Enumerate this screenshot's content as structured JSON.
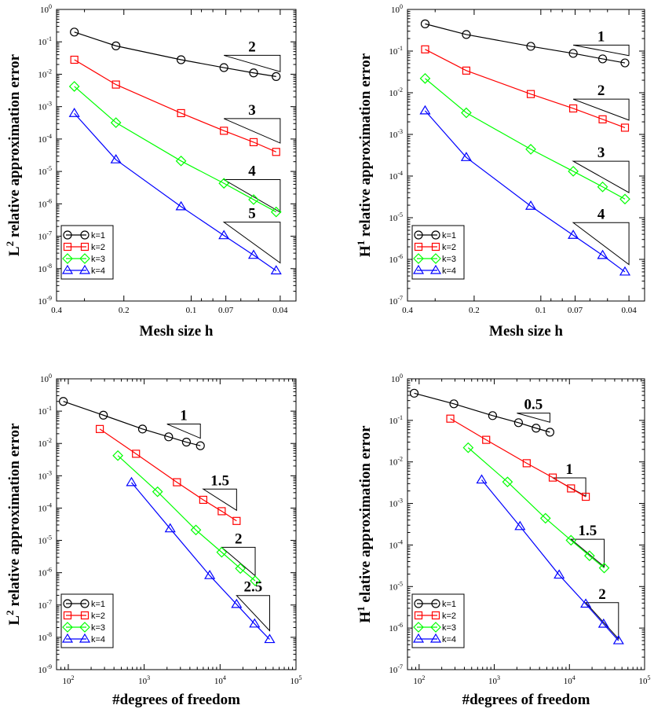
{
  "series_colors": {
    "k=1": "#000000",
    "k=2": "#ff0000",
    "k=3": "#00ff00",
    "k=4": "#0000ff"
  },
  "series_markers": {
    "k=1": "circle",
    "k=2": "square",
    "k=3": "diamond",
    "k=4": "triangle"
  },
  "chart_data": [
    {
      "type": "line",
      "xscale": "log",
      "yscale": "log",
      "x_reversed": true,
      "xlabel": "Mesh size h",
      "ylabel": "L² relative approximation error",
      "ylabel_main": "L",
      "ylabel_sup": "2",
      "ylabel_rest": " relative approximation error",
      "xlim": [
        0.4,
        0.034
      ],
      "ylim": [
        1e-09,
        1
      ],
      "xticks": [
        0.4,
        0.2,
        0.1,
        0.07,
        0.04
      ],
      "xtick_labels": [
        "0.4",
        "0.2",
        "0.1",
        "0.07",
        "0.04"
      ],
      "yticks_exp": [
        0,
        -1,
        -2,
        -3,
        -4,
        -5,
        -6,
        -7,
        -8,
        -9
      ],
      "legend": "bottom-left",
      "series": [
        {
          "name": "k=1",
          "x": [
            0.333,
            0.217,
            0.111,
            0.0714,
            0.0526,
            0.0417
          ],
          "y": [
            0.2,
            0.075,
            0.028,
            0.016,
            0.011,
            0.0085
          ]
        },
        {
          "name": "k=2",
          "x": [
            0.333,
            0.217,
            0.111,
            0.0714,
            0.0526,
            0.0417
          ],
          "y": [
            0.028,
            0.0048,
            0.00063,
            0.00018,
            8e-05,
            4e-05
          ]
        },
        {
          "name": "k=3",
          "x": [
            0.333,
            0.217,
            0.111,
            0.0714,
            0.0526,
            0.0417
          ],
          "y": [
            0.0042,
            0.00032,
            2.1e-05,
            4.3e-06,
            1.35e-06,
            5.6e-07
          ]
        },
        {
          "name": "k=4",
          "x": [
            0.333,
            0.217,
            0.111,
            0.0714,
            0.0526,
            0.0417
          ],
          "y": [
            0.00062,
            2.3e-05,
            8.2e-07,
            1.05e-07,
            2.6e-08,
            8.6e-09
          ]
        }
      ],
      "slope_triangles": [
        {
          "label": "2",
          "x": [
            0.0714,
            0.04
          ],
          "y_bottom": 0.012,
          "slope": 2
        },
        {
          "label": "3",
          "x": [
            0.0714,
            0.04
          ],
          "y_bottom": 7.5e-05,
          "slope": 3
        },
        {
          "label": "4",
          "x": [
            0.0714,
            0.04
          ],
          "y_bottom": 5.5e-07,
          "slope": 4
        },
        {
          "label": "5",
          "x": [
            0.0714,
            0.04
          ],
          "y_bottom": 1.5e-08,
          "slope": 5
        }
      ]
    },
    {
      "type": "line",
      "xscale": "log",
      "yscale": "log",
      "x_reversed": true,
      "xlabel": "Mesh size h",
      "ylabel": "H¹ relative approximation error",
      "ylabel_main": "H",
      "ylabel_sup": "1",
      "ylabel_rest": " relative approximation error",
      "xlim": [
        0.4,
        0.034
      ],
      "ylim": [
        1e-07,
        1
      ],
      "xticks": [
        0.4,
        0.2,
        0.1,
        0.07,
        0.04
      ],
      "xtick_labels": [
        "0.4",
        "0.2",
        "0.1",
        "0.07",
        "0.04"
      ],
      "yticks_exp": [
        0,
        -1,
        -2,
        -3,
        -4,
        -5,
        -6,
        -7
      ],
      "legend": "bottom-left",
      "series": [
        {
          "name": "k=1",
          "x": [
            0.333,
            0.217,
            0.111,
            0.0714,
            0.0526,
            0.0417
          ],
          "y": [
            0.45,
            0.25,
            0.13,
            0.088,
            0.065,
            0.052
          ]
        },
        {
          "name": "k=2",
          "x": [
            0.333,
            0.217,
            0.111,
            0.0714,
            0.0526,
            0.0417
          ],
          "y": [
            0.11,
            0.034,
            0.0093,
            0.0042,
            0.0023,
            0.00145
          ]
        },
        {
          "name": "k=3",
          "x": [
            0.333,
            0.217,
            0.111,
            0.0714,
            0.0526,
            0.0417
          ],
          "y": [
            0.022,
            0.0033,
            0.00044,
            0.00013,
            5.5e-05,
            2.8e-05
          ]
        },
        {
          "name": "k=4",
          "x": [
            0.333,
            0.217,
            0.111,
            0.0714,
            0.0526,
            0.0417
          ],
          "y": [
            0.0037,
            0.00028,
            1.9e-05,
            3.8e-06,
            1.25e-06,
            5e-07
          ]
        }
      ],
      "slope_triangles": [
        {
          "label": "1",
          "x": [
            0.0714,
            0.04
          ],
          "y_bottom": 0.078,
          "slope": 1
        },
        {
          "label": "2",
          "x": [
            0.0714,
            0.04
          ],
          "y_bottom": 0.0022,
          "slope": 2
        },
        {
          "label": "3",
          "x": [
            0.0714,
            0.04
          ],
          "y_bottom": 4e-05,
          "slope": 3
        },
        {
          "label": "4",
          "x": [
            0.0714,
            0.04
          ],
          "y_bottom": 7.5e-07,
          "slope": 4
        }
      ]
    },
    {
      "type": "line",
      "xscale": "log",
      "yscale": "log",
      "x_reversed": false,
      "xlabel": "#degrees of freedom",
      "ylabel": "L² relative approximation error",
      "ylabel_main": "L",
      "ylabel_sup": "2",
      "ylabel_rest": " relative approximation error",
      "xlim": [
        70,
        100000
      ],
      "ylim": [
        1e-09,
        1
      ],
      "xticks": [
        100,
        1000,
        10000,
        100000
      ],
      "xtick_exp": [
        2,
        3,
        4,
        5
      ],
      "yticks_exp": [
        0,
        -1,
        -2,
        -3,
        -4,
        -5,
        -6,
        -7,
        -8,
        -9
      ],
      "legend": "bottom-left",
      "series": [
        {
          "name": "k=1",
          "x": [
            86,
            290,
            950,
            2100,
            3600,
            5500
          ],
          "y": [
            0.2,
            0.075,
            0.028,
            0.016,
            0.011,
            0.0085
          ]
        },
        {
          "name": "k=2",
          "x": [
            260,
            780,
            2700,
            6000,
            10500,
            16500
          ],
          "y": [
            0.028,
            0.0048,
            0.00063,
            0.00018,
            8e-05,
            4e-05
          ]
        },
        {
          "name": "k=3",
          "x": [
            450,
            1500,
            4800,
            10500,
            18500,
            29000
          ],
          "y": [
            0.0042,
            0.00032,
            2.1e-05,
            4.3e-06,
            1.35e-06,
            5.6e-07
          ]
        },
        {
          "name": "k=4",
          "x": [
            680,
            2200,
            7300,
            16500,
            28500,
            45000
          ],
          "y": [
            0.00062,
            2.3e-05,
            8.2e-07,
            1.05e-07,
            2.6e-08,
            8.6e-09
          ]
        }
      ],
      "slope_triangles": [
        {
          "label": "1",
          "x": [
            2000,
            5500
          ],
          "y_bottom": 0.0145,
          "slope": 1
        },
        {
          "label": "1.5",
          "x": [
            6000,
            16500
          ],
          "y_bottom": 8.5e-05,
          "slope": 1.5
        },
        {
          "label": "2",
          "x": [
            10500,
            29000
          ],
          "y_bottom": 8e-07,
          "slope": 2
        },
        {
          "label": "2.5",
          "x": [
            16500,
            45000
          ],
          "y_bottom": 1.6e-08,
          "slope": 2.5
        }
      ]
    },
    {
      "type": "line",
      "xscale": "log",
      "yscale": "log",
      "x_reversed": false,
      "xlabel": "#degrees of freedom",
      "ylabel": "H¹ elative approximation error",
      "ylabel_main": "H",
      "ylabel_sup": "1",
      "ylabel_rest": " elative approximation error",
      "xlim": [
        70,
        100000
      ],
      "ylim": [
        1e-07,
        1
      ],
      "xticks": [
        100,
        1000,
        10000,
        100000
      ],
      "xtick_exp": [
        2,
        3,
        4,
        5
      ],
      "yticks_exp": [
        0,
        -1,
        -2,
        -3,
        -4,
        -5,
        -6,
        -7
      ],
      "legend": "bottom-left",
      "series": [
        {
          "name": "k=1",
          "x": [
            86,
            290,
            950,
            2100,
            3600,
            5500
          ],
          "y": [
            0.45,
            0.25,
            0.13,
            0.088,
            0.065,
            0.052
          ]
        },
        {
          "name": "k=2",
          "x": [
            260,
            780,
            2700,
            6000,
            10500,
            16500
          ],
          "y": [
            0.11,
            0.034,
            0.0093,
            0.0042,
            0.0023,
            0.00145
          ]
        },
        {
          "name": "k=3",
          "x": [
            450,
            1500,
            4800,
            10500,
            18500,
            29000
          ],
          "y": [
            0.022,
            0.0033,
            0.00044,
            0.00013,
            5.5e-05,
            2.8e-05
          ]
        },
        {
          "name": "k=4",
          "x": [
            680,
            2200,
            7300,
            16500,
            28500,
            45000
          ],
          "y": [
            0.0037,
            0.00028,
            1.9e-05,
            3.8e-06,
            1.25e-06,
            5e-07
          ]
        }
      ],
      "slope_triangles": [
        {
          "label": "0.5",
          "x": [
            2000,
            5500
          ],
          "y_bottom": 0.09,
          "slope": 0.5
        },
        {
          "label": "1",
          "x": [
            6000,
            16500
          ],
          "y_bottom": 0.0015,
          "slope": 1
        },
        {
          "label": "1.5",
          "x": [
            10500,
            29000
          ],
          "y_bottom": 3e-05,
          "slope": 1.5
        },
        {
          "label": "2",
          "x": [
            16500,
            45000
          ],
          "y_bottom": 5.5e-07,
          "slope": 2
        }
      ]
    }
  ]
}
